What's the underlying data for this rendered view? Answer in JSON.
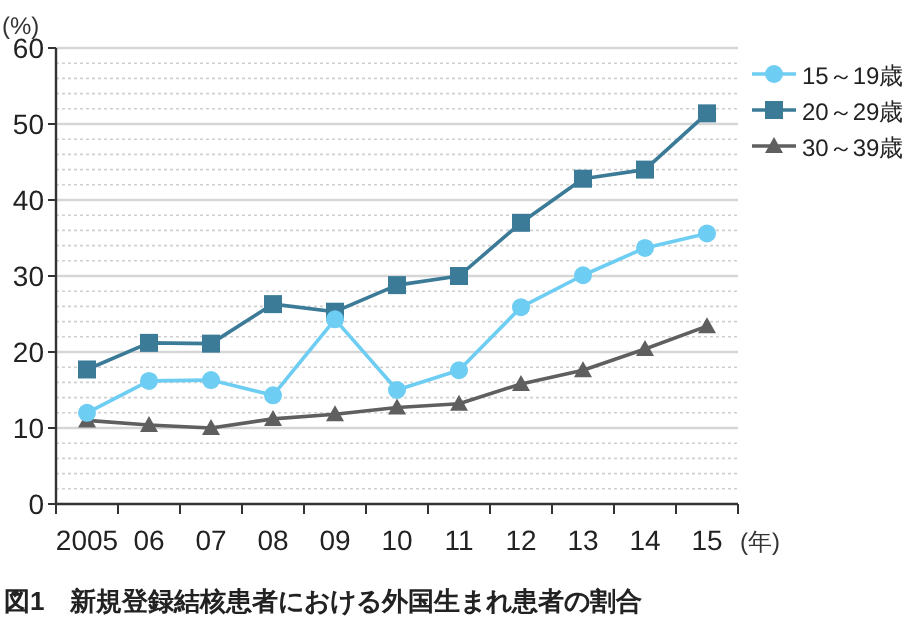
{
  "chart_data": {
    "type": "line",
    "ylabel": "(%)",
    "xlabel": "(年)",
    "categories": [
      "2005",
      "06",
      "07",
      "08",
      "09",
      "10",
      "11",
      "12",
      "13",
      "14",
      "15"
    ],
    "series": [
      {
        "name": "15～19歳",
        "color": "#6dcdf2",
        "marker": "circle",
        "values": [
          12.0,
          16.2,
          16.3,
          14.3,
          24.3,
          15.0,
          17.6,
          25.9,
          30.1,
          33.7,
          35.6
        ]
      },
      {
        "name": "20～29歳",
        "color": "#3b7b98",
        "marker": "square",
        "values": [
          17.7,
          21.2,
          21.1,
          26.3,
          25.3,
          28.8,
          30.0,
          37.0,
          42.8,
          44.0,
          51.4
        ]
      },
      {
        "name": "30～39歳",
        "color": "#5f5f5f",
        "marker": "triangle",
        "values": [
          11.0,
          10.4,
          10.0,
          11.2,
          11.8,
          12.7,
          13.2,
          15.8,
          17.6,
          20.4,
          23.4
        ]
      }
    ],
    "ylim": [
      0,
      60
    ],
    "yticks": [
      0,
      {
        "value": 2,
        "label": null
      },
      {
        "value": 4,
        "label": null
      },
      {
        "value": 6,
        "label": null
      },
      {
        "value": 8,
        "label": null
      },
      10,
      {
        "value": 12,
        "label": null
      },
      {
        "value": 14,
        "label": null
      },
      {
        "value": 16,
        "label": null
      },
      {
        "value": 18,
        "label": null
      },
      20,
      {
        "value": 22,
        "label": null
      },
      {
        "value": 24,
        "label": null
      },
      {
        "value": 26,
        "label": null
      },
      {
        "value": 28,
        "label": null
      },
      30,
      {
        "value": 32,
        "label": null
      },
      {
        "value": 34,
        "label": null
      },
      {
        "value": 36,
        "label": null
      },
      {
        "value": 38,
        "label": null
      },
      40,
      {
        "value": 42,
        "label": null
      },
      {
        "value": 44,
        "label": null
      },
      {
        "value": 46,
        "label": null
      },
      {
        "value": 48,
        "label": null
      },
      50,
      {
        "value": 52,
        "label": null
      },
      {
        "value": 54,
        "label": null
      },
      {
        "value": 56,
        "label": null
      },
      {
        "value": 58,
        "label": null
      },
      60
    ],
    "grid": "y",
    "legend": "right",
    "line_style": "solid",
    "annotations": [
      "図1　新規登録結核患者における外国生まれ患者の割合"
    ]
  }
}
